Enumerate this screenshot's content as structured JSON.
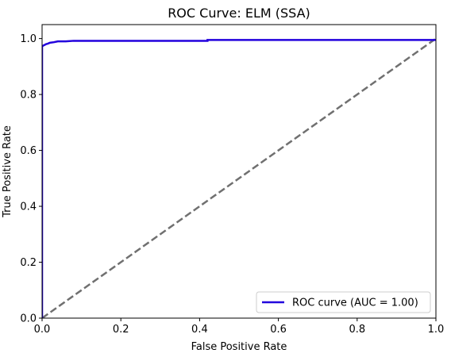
{
  "chart_data": {
    "type": "line",
    "title": "ROC Curve: ELM (SSA)",
    "xlabel": "False Positive Rate",
    "ylabel": "True Positive Rate",
    "xlim": [
      0.0,
      1.0
    ],
    "ylim": [
      0.0,
      1.05
    ],
    "x_ticks": [
      0.0,
      0.2,
      0.4,
      0.6,
      0.8,
      1.0
    ],
    "y_ticks": [
      0.0,
      0.2,
      0.4,
      0.6,
      0.8,
      1.0
    ],
    "x_tick_labels": [
      "0.0",
      "0.2",
      "0.4",
      "0.6",
      "0.8",
      "1.0"
    ],
    "y_tick_labels": [
      "0.0",
      "0.2",
      "0.4",
      "0.6",
      "0.8",
      "1.0"
    ],
    "grid": false,
    "legend_position": "lower-right",
    "series": [
      {
        "name": "ROC curve (AUC = 1.00)",
        "color": "#2200dd",
        "style": "solid",
        "x": [
          0.0,
          0.0,
          0.003,
          0.006,
          0.01,
          0.015,
          0.02,
          0.03,
          0.04,
          0.05,
          0.06,
          0.08,
          0.1,
          0.2,
          0.3,
          0.42,
          0.42,
          0.6,
          0.8,
          1.0
        ],
        "y": [
          0.0,
          0.972,
          0.975,
          0.977,
          0.98,
          0.982,
          0.985,
          0.987,
          0.99,
          0.99,
          0.99,
          0.992,
          0.992,
          0.992,
          0.992,
          0.992,
          0.995,
          0.995,
          0.995,
          0.995
        ]
      },
      {
        "name": "chance",
        "color": "#707070",
        "style": "dashed",
        "x": [
          0.0,
          1.0
        ],
        "y": [
          0.0,
          1.0
        ]
      }
    ]
  }
}
